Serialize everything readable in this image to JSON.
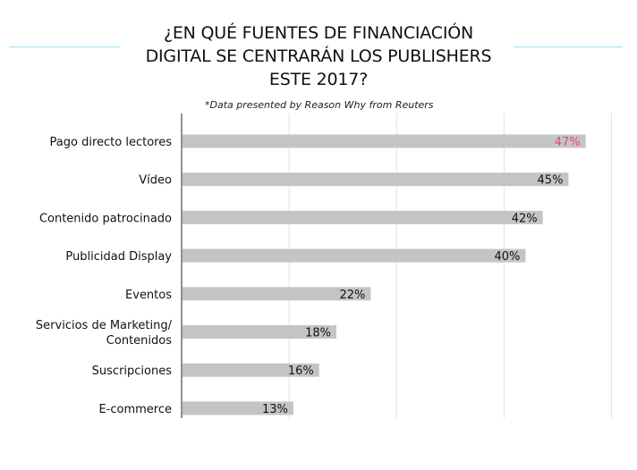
{
  "header": {
    "title_lines": [
      "¿EN QUÉ FUENTES DE FINANCIACIÓN",
      "DIGITAL SE CENTRARÁN LOS PUBLISHERS",
      "ESTE 2017?"
    ],
    "subtitle": "*Data presented by Reason Why from Reuters"
  },
  "colors": {
    "bar": "#c4c4c4",
    "highlight_label": "#e8438f",
    "label": "#111111",
    "grid": "#e2e2e2",
    "axis": "#222222",
    "accent_rule": "#9fe3ea"
  },
  "chart_data": {
    "type": "bar",
    "orientation": "horizontal",
    "title": "¿EN QUÉ FUENTES DE FINANCIACIÓN DIGITAL SE CENTRARÁN LOS PUBLISHERS ESTE 2017?",
    "subtitle": "*Data presented by Reason Why from Reuters",
    "xlabel": "",
    "ylabel": "",
    "xlim": [
      0,
      50
    ],
    "grid": true,
    "categories": [
      "Pago directo lectores",
      "Vídeo",
      "Contenido patrocinado",
      "Publicidad Display",
      "Eventos",
      "Servicios de Marketing/ Contenidos",
      "Suscripciones",
      "E-commerce"
    ],
    "category_lines": [
      [
        "Pago directo lectores"
      ],
      [
        "Vídeo"
      ],
      [
        "Contenido patrocinado"
      ],
      [
        "Publicidad Display"
      ],
      [
        "Eventos"
      ],
      [
        "Servicios de Marketing/",
        "Contenidos"
      ],
      [
        "Suscripciones"
      ],
      [
        "E-commerce"
      ]
    ],
    "values": [
      47,
      45,
      42,
      40,
      22,
      18,
      16,
      13
    ],
    "value_labels": [
      "47%",
      "45%",
      "42%",
      "40%",
      "22%",
      "18%",
      "16%",
      "13%"
    ],
    "highlight_index": 0
  }
}
